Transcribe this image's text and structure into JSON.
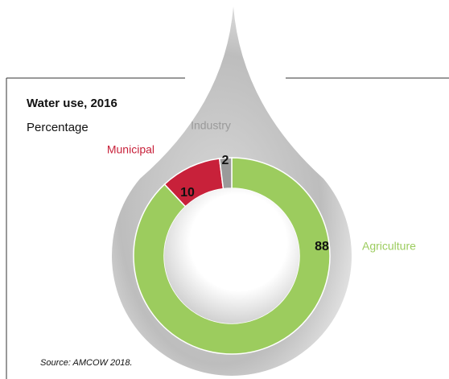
{
  "chart_data": {
    "type": "pie",
    "title": "Water use, 2016",
    "subtitle": "Percentage",
    "categories": [
      "Agriculture",
      "Municipal",
      "Industry"
    ],
    "values": [
      88,
      10,
      2
    ],
    "colors": [
      "#9ccc5e",
      "#c8213a",
      "#9a9a9a"
    ],
    "source": "Source: AMCOW 2018."
  }
}
